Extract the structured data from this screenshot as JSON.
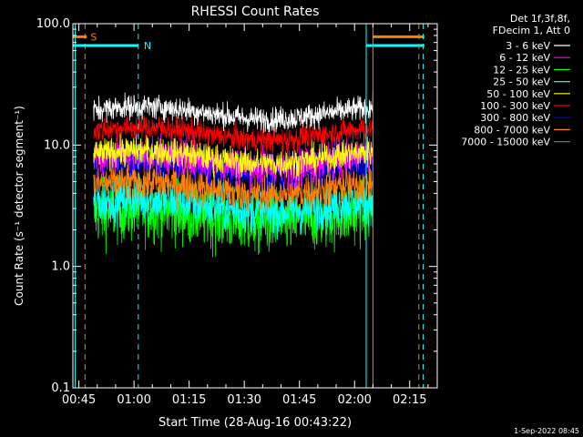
{
  "chart_data": {
    "type": "line",
    "title": "RHESSI Count Rates",
    "xlabel": "Start Time (28-Aug-16 00:43:22)",
    "ylabel": "Count Rate (s⁻¹ detector segment⁻¹)",
    "yscale": "log",
    "ylim": [
      0.1,
      100.0
    ],
    "xlim": [
      "00:43:22",
      "02:22:30"
    ],
    "x_ticks": [
      "00:45",
      "01:00",
      "01:15",
      "01:30",
      "01:45",
      "02:00",
      "02:15"
    ],
    "y_ticks": [
      "0.1",
      "1.0",
      "10.0",
      "100.0"
    ],
    "grid": false,
    "legend_position": "top-right",
    "legend_header": [
      "Det 1f,3f,8f,",
      "FDecim 1, Att 0"
    ],
    "data_time_range": [
      "00:49:00",
      "02:05:00"
    ],
    "series": [
      {
        "name": "3 - 6 keV",
        "color": "#ffffff",
        "level": 18.5,
        "noise": 0.05
      },
      {
        "name": "6 - 12 keV",
        "color": "#ff00ff",
        "level": 7.5,
        "noise": 0.08
      },
      {
        "name": "12 - 25 keV",
        "color": "#00ff00",
        "level": 2.6,
        "noise": 0.13
      },
      {
        "name": "25 - 50 keV",
        "color": "#00ffff",
        "level": 3.2,
        "noise": 0.09
      },
      {
        "name": "50 - 100 keV",
        "color": "#ffff00",
        "level": 8.0,
        "noise": 0.06
      },
      {
        "name": "100 - 300 keV",
        "color": "#ff0000",
        "level": 12.5,
        "noise": 0.05
      },
      {
        "name": "300 - 800 keV",
        "color": "#0000ff",
        "level": 6.8,
        "noise": 0.07
      },
      {
        "name": "800 - 7000 keV",
        "color": "#ff8000",
        "level": 4.5,
        "noise": 0.08
      },
      {
        "name": "7000 - 15000 keV",
        "color": "#808000",
        "level": 0,
        "noise": 0
      }
    ],
    "markers": [
      {
        "label": "S",
        "color": "#ff8000",
        "time": "00:46:40",
        "style": "dashed",
        "bar_value": 78,
        "bar_range": [
          "00:43:22",
          "00:47:10"
        ]
      },
      {
        "label": "N",
        "color": "#00ffff",
        "time": "01:01:10",
        "style": "dashed",
        "bar_value": 66,
        "bar_range": [
          "00:43:22",
          "01:01:10"
        ]
      },
      {
        "label": "",
        "color": "#00ffff",
        "time": "00:44:00",
        "style": "solid"
      },
      {
        "label": "",
        "color": "#00ffff",
        "time": "02:03:10",
        "style": "solid",
        "bar_value": 66,
        "bar_range": [
          "02:03:10",
          "02:19:00"
        ]
      },
      {
        "label": "",
        "color": "#ff8000",
        "time": "02:05:00",
        "style": "solid",
        "bar_value": 78,
        "bar_range": [
          "02:05:00",
          "02:19:00"
        ]
      },
      {
        "label": "",
        "color": "#ff8000",
        "time": "02:17:30",
        "style": "dashed"
      },
      {
        "label": "",
        "color": "#00ffff",
        "time": "02:18:40",
        "style": "dashed"
      }
    ]
  },
  "footer": {
    "timestamp": "1-Sep-2022 08:45"
  },
  "colors": {
    "background": "#000000",
    "axes": "#ffffff"
  }
}
